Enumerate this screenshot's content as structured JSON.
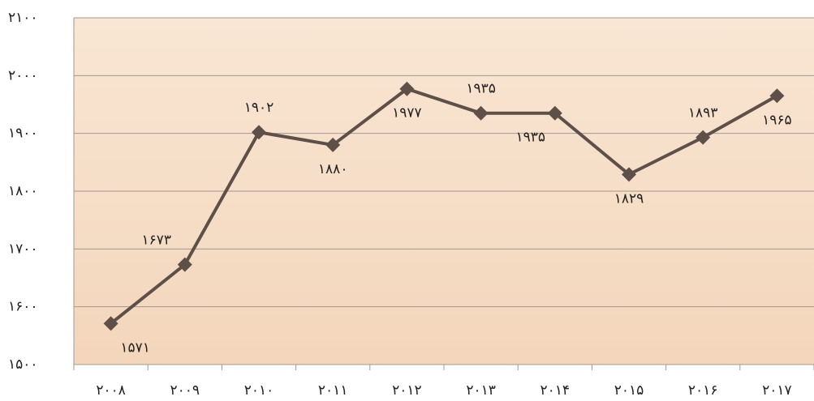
{
  "chart_data": {
    "type": "line",
    "categories": [
      "۲۰۰۸",
      "۲۰۰۹",
      "۲۰۱۰",
      "۲۰۱۱",
      "۲۰۱۲",
      "۲۰۱۳",
      "۲۰۱۴",
      "۲۰۱۵",
      "۲۰۱۶",
      "۲۰۱۷"
    ],
    "series": [
      {
        "color": "#5e5048",
        "values": [
          1571,
          1673,
          1902,
          1880,
          1977,
          1935,
          1935,
          1829,
          1893,
          1965
        ],
        "value_labels": [
          "۱۵۷۱",
          "۱۶۷۳",
          "۱۹۰۲",
          "۱۸۸۰",
          "۱۹۷۷",
          "۱۹۳۵",
          "۱۹۳۵",
          "۱۸۲۹",
          "۱۸۹۳",
          "۱۹۶۵"
        ]
      }
    ],
    "ylim": [
      1500,
      2100
    ],
    "yticks": [
      {
        "value": 1500,
        "label": "۱۵۰۰"
      },
      {
        "value": 1600,
        "label": "۱۶۰۰"
      },
      {
        "value": 1700,
        "label": "۱۷۰۰"
      },
      {
        "value": 1800,
        "label": "۱۸۰۰"
      },
      {
        "value": 1900,
        "label": "۱۹۰۰"
      },
      {
        "value": 2000,
        "label": "۲۰۰۰"
      },
      {
        "value": 2100,
        "label": "۲۱۰۰"
      }
    ],
    "grid": true
  }
}
